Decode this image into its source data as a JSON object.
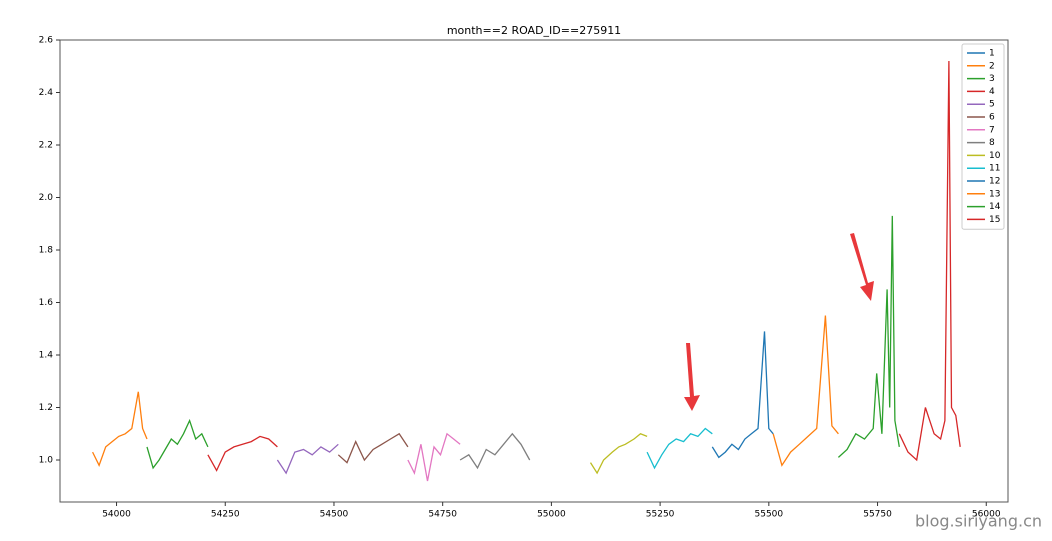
{
  "chart_data": {
    "type": "line",
    "title": "month==2    ROAD_ID==275911",
    "xlim": [
      53870,
      56050
    ],
    "ylim": [
      0.84,
      2.6
    ],
    "xticks": [
      54000,
      54250,
      54500,
      54750,
      55000,
      55250,
      55500,
      55750,
      56000
    ],
    "yticks": [
      {
        "value": 1.0,
        "label": "1.0"
      },
      1.2,
      1.4,
      1.6,
      1.8,
      {
        "value": 2.0,
        "label": "2.0"
      },
      2.2,
      2.4,
      2.6
    ],
    "legend": "upper right",
    "series": [
      {
        "name": "1",
        "color": "#1f77b4",
        "x": [],
        "values": []
      },
      {
        "name": "2",
        "color": "#ff7f0e",
        "x": [
          53945,
          53960,
          53975,
          53990,
          54005,
          54020,
          54035,
          54050,
          54060,
          54070
        ],
        "values": [
          1.03,
          0.98,
          1.05,
          1.07,
          1.09,
          1.1,
          1.12,
          1.26,
          1.12,
          1.08
        ]
      },
      {
        "name": "3",
        "color": "#2ca02c",
        "x": [
          54070,
          54084,
          54098,
          54112,
          54126,
          54140,
          54154,
          54168,
          54182,
          54196,
          54210
        ],
        "values": [
          1.05,
          0.97,
          1.0,
          1.04,
          1.08,
          1.06,
          1.1,
          1.15,
          1.08,
          1.1,
          1.05
        ]
      },
      {
        "name": "4",
        "color": "#d62728",
        "x": [
          54210,
          54230,
          54250,
          54270,
          54290,
          54310,
          54330,
          54350,
          54370
        ],
        "values": [
          1.02,
          0.96,
          1.03,
          1.05,
          1.06,
          1.07,
          1.09,
          1.08,
          1.05
        ]
      },
      {
        "name": "5",
        "color": "#9467bd",
        "x": [
          54370,
          54390,
          54410,
          54430,
          54450,
          54470,
          54490,
          54510
        ],
        "values": [
          1.0,
          0.95,
          1.03,
          1.04,
          1.02,
          1.05,
          1.03,
          1.06
        ]
      },
      {
        "name": "6",
        "color": "#8c564b",
        "x": [
          54510,
          54530,
          54550,
          54570,
          54590,
          54610,
          54630,
          54650,
          54670
        ],
        "values": [
          1.02,
          0.99,
          1.07,
          1.0,
          1.04,
          1.06,
          1.08,
          1.1,
          1.05
        ]
      },
      {
        "name": "7",
        "color": "#e377c2",
        "x": [
          54670,
          54685,
          54700,
          54715,
          54730,
          54745,
          54760,
          54775,
          54790
        ],
        "values": [
          1.0,
          0.95,
          1.06,
          0.92,
          1.05,
          1.02,
          1.1,
          1.08,
          1.06
        ]
      },
      {
        "name": "8",
        "color": "#7f7f7f",
        "x": [
          54790,
          54810,
          54830,
          54850,
          54870,
          54890,
          54910,
          54930,
          54950
        ],
        "values": [
          1.0,
          1.02,
          0.97,
          1.04,
          1.02,
          1.06,
          1.1,
          1.06,
          1.0
        ]
      },
      {
        "name": "10",
        "color": "#bcbd22",
        "x": [
          55090,
          55105,
          55120,
          55140,
          55155,
          55170,
          55190,
          55205,
          55220
        ],
        "values": [
          0.99,
          0.95,
          1.0,
          1.03,
          1.05,
          1.06,
          1.08,
          1.1,
          1.09
        ]
      },
      {
        "name": "11",
        "color": "#17becf",
        "x": [
          55220,
          55237,
          55254,
          55270,
          55287,
          55304,
          55320,
          55337,
          55354,
          55370
        ],
        "values": [
          1.03,
          0.97,
          1.02,
          1.06,
          1.08,
          1.07,
          1.1,
          1.09,
          1.12,
          1.1
        ]
      },
      {
        "name": "12",
        "color": "#1f77b4",
        "x": [
          55370,
          55385,
          55400,
          55415,
          55430,
          55445,
          55460,
          55475,
          55490,
          55500,
          55510
        ],
        "values": [
          1.05,
          1.01,
          1.03,
          1.06,
          1.04,
          1.08,
          1.1,
          1.12,
          1.49,
          1.12,
          1.1
        ]
      },
      {
        "name": "13",
        "color": "#ff7f0e",
        "x": [
          55510,
          55530,
          55550,
          55570,
          55590,
          55610,
          55630,
          55645,
          55660
        ],
        "values": [
          1.1,
          0.98,
          1.03,
          1.06,
          1.09,
          1.12,
          1.55,
          1.13,
          1.1
        ]
      },
      {
        "name": "14",
        "color": "#2ca02c",
        "x": [
          55660,
          55680,
          55700,
          55720,
          55740,
          55748,
          55760,
          55772,
          55778,
          55784,
          55790,
          55800
        ],
        "values": [
          1.01,
          1.04,
          1.1,
          1.08,
          1.12,
          1.33,
          1.1,
          1.65,
          1.2,
          1.93,
          1.15,
          1.05
        ]
      },
      {
        "name": "15",
        "color": "#d62728",
        "x": [
          55800,
          55820,
          55840,
          55860,
          55880,
          55895,
          55905,
          55914,
          55920,
          55930,
          55940
        ],
        "values": [
          1.1,
          1.03,
          1.0,
          1.2,
          1.1,
          1.08,
          1.15,
          2.52,
          1.2,
          1.17,
          1.05
        ]
      }
    ]
  },
  "watermark": "blog.siriyang.cn"
}
